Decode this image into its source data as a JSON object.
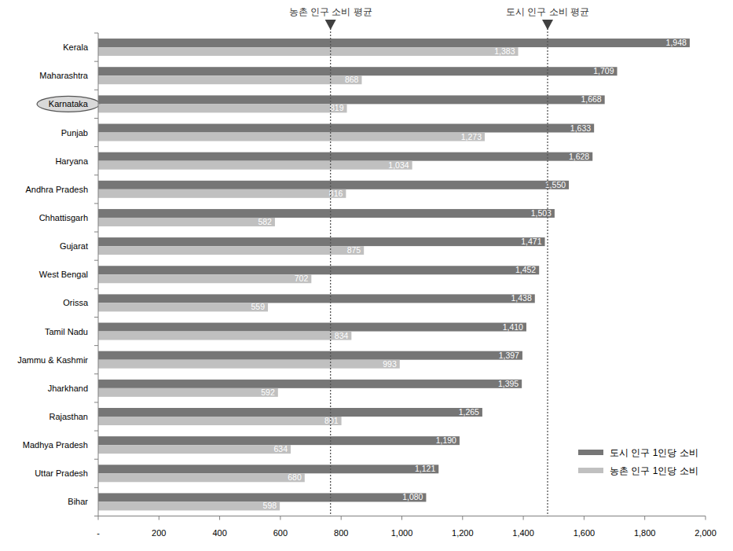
{
  "chart_data": {
    "type": "bar",
    "orientation": "horizontal",
    "data_labels": true,
    "legend": "lower right",
    "categories": [
      "Kerala",
      "Maharashtra",
      "Karnataka",
      "Punjab",
      "Haryana",
      "Andhra Pradesh",
      "Chhattisgarh",
      "Gujarat",
      "West Bengal",
      "Orissa",
      "Tamil Nadu",
      "Jammu & Kashmir",
      "Jharkhand",
      "Rajasthan",
      "Madhya Pradesh",
      "Uttar Pradesh",
      "Bihar"
    ],
    "series": [
      {
        "name": "도시 인구 1인당 소비",
        "color": "#767676",
        "values": [
          1948,
          1709,
          1668,
          1633,
          1628,
          1550,
          1503,
          1471,
          1452,
          1438,
          1410,
          1397,
          1395,
          1265,
          1190,
          1121,
          1080
        ],
        "value_labels": [
          "1,948",
          "1,709",
          "1,668",
          "1,633",
          "1,628",
          "1,550",
          "1,503",
          "1,471",
          "1,452",
          "1,438",
          "1,410",
          "1,397",
          "1,395",
          "1,265",
          "1,190",
          "1,121",
          "1,080"
        ]
      },
      {
        "name": "농촌 인구 1인당 소비",
        "color": "#c0c0c0",
        "values": [
          1383,
          868,
          819,
          1273,
          1034,
          816,
          582,
          875,
          702,
          559,
          834,
          993,
          592,
          801,
          634,
          680,
          598
        ],
        "value_labels": [
          "1,383",
          "868",
          "819",
          "1,273",
          "1,034",
          "816",
          "582",
          "875",
          "702",
          "559",
          "834",
          "993",
          "592",
          "801",
          "634",
          "680",
          "598"
        ]
      }
    ],
    "xlim": [
      0,
      2000
    ],
    "xticks": [
      {
        "value": 0,
        "label": "-"
      },
      200,
      400,
      600,
      800,
      {
        "value": 1000,
        "label": "1,000"
      },
      {
        "value": 1200,
        "label": "1,200"
      },
      {
        "value": 1400,
        "label": "1,400"
      },
      {
        "value": 1600,
        "label": "1,600"
      },
      {
        "value": 1800,
        "label": "1,800"
      },
      {
        "value": 2000,
        "label": "2,000"
      }
    ],
    "annotations": [
      {
        "text": "농촌 인구 소비 평균",
        "value": 765
      },
      {
        "text": "도시 인구 소비 평균",
        "value": 1480
      },
      {
        "type": "circle",
        "category": "Karnataka"
      }
    ]
  }
}
